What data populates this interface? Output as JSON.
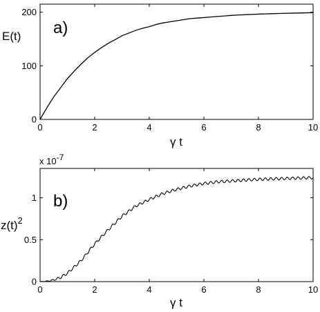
{
  "chart_data": [
    {
      "type": "line",
      "panel_label": "a)",
      "xlabel": "γ t",
      "ylabel": "E(t)",
      "xlim": [
        0,
        10
      ],
      "ylim": [
        0,
        215
      ],
      "xticks": [
        0,
        2,
        4,
        6,
        8,
        10
      ],
      "yticks": [
        0,
        100,
        200
      ],
      "grid": false,
      "series": [
        {
          "x": [
            0,
            0.25,
            0.5,
            0.75,
            1,
            1.25,
            1.5,
            1.75,
            2,
            2.25,
            2.5,
            2.75,
            3,
            3.25,
            3.5,
            3.75,
            4,
            4.25,
            4.5,
            4.75,
            5,
            5.25,
            5.5,
            5.75,
            6,
            6.25,
            6.5,
            6.75,
            7,
            7.25,
            7.5,
            7.75,
            8,
            8.25,
            8.5,
            8.75,
            9,
            9.25,
            9.5,
            9.75,
            10
          ],
          "y": [
            0,
            22,
            42,
            59,
            76,
            90,
            103,
            115,
            125,
            134,
            142,
            149,
            156,
            161,
            166,
            170,
            173,
            177,
            180,
            182,
            184,
            186,
            188,
            189,
            190,
            191,
            192,
            193,
            194,
            194.7,
            195.3,
            195.9,
            196.4,
            196.8,
            197.2,
            197.6,
            197.9,
            198.2,
            198.5,
            198.8,
            199
          ]
        }
      ]
    },
    {
      "type": "line",
      "panel_label": "b)",
      "xlabel": "γ t",
      "ylabel": "z(t)",
      "ylabel_superscript": "2",
      "y_multiplier_label": "x 10",
      "y_multiplier_exponent": "-7",
      "xlim": [
        0,
        10
      ],
      "ylim": [
        0,
        1.35
      ],
      "xticks": [
        0,
        2,
        4,
        6,
        8,
        10
      ],
      "yticks": [
        0,
        0.5,
        1
      ],
      "grid": false,
      "curve_model": {
        "description": "sigmoidal rise with small oscillation",
        "control_x": [
          0,
          0.25,
          0.5,
          0.75,
          1,
          1.5,
          2,
          2.5,
          3,
          3.5,
          4,
          4.5,
          5,
          5.5,
          6,
          6.5,
          7,
          7.5,
          8,
          8.5,
          9,
          9.5,
          10
        ],
        "control_y": [
          0,
          0.005,
          0.02,
          0.05,
          0.1,
          0.25,
          0.45,
          0.62,
          0.78,
          0.9,
          0.98,
          1.05,
          1.1,
          1.14,
          1.17,
          1.19,
          1.2,
          1.21,
          1.22,
          1.225,
          1.23,
          1.235,
          1.24
        ],
        "oscillation_amplitude": 0.015,
        "oscillation_period": 0.2
      }
    }
  ]
}
